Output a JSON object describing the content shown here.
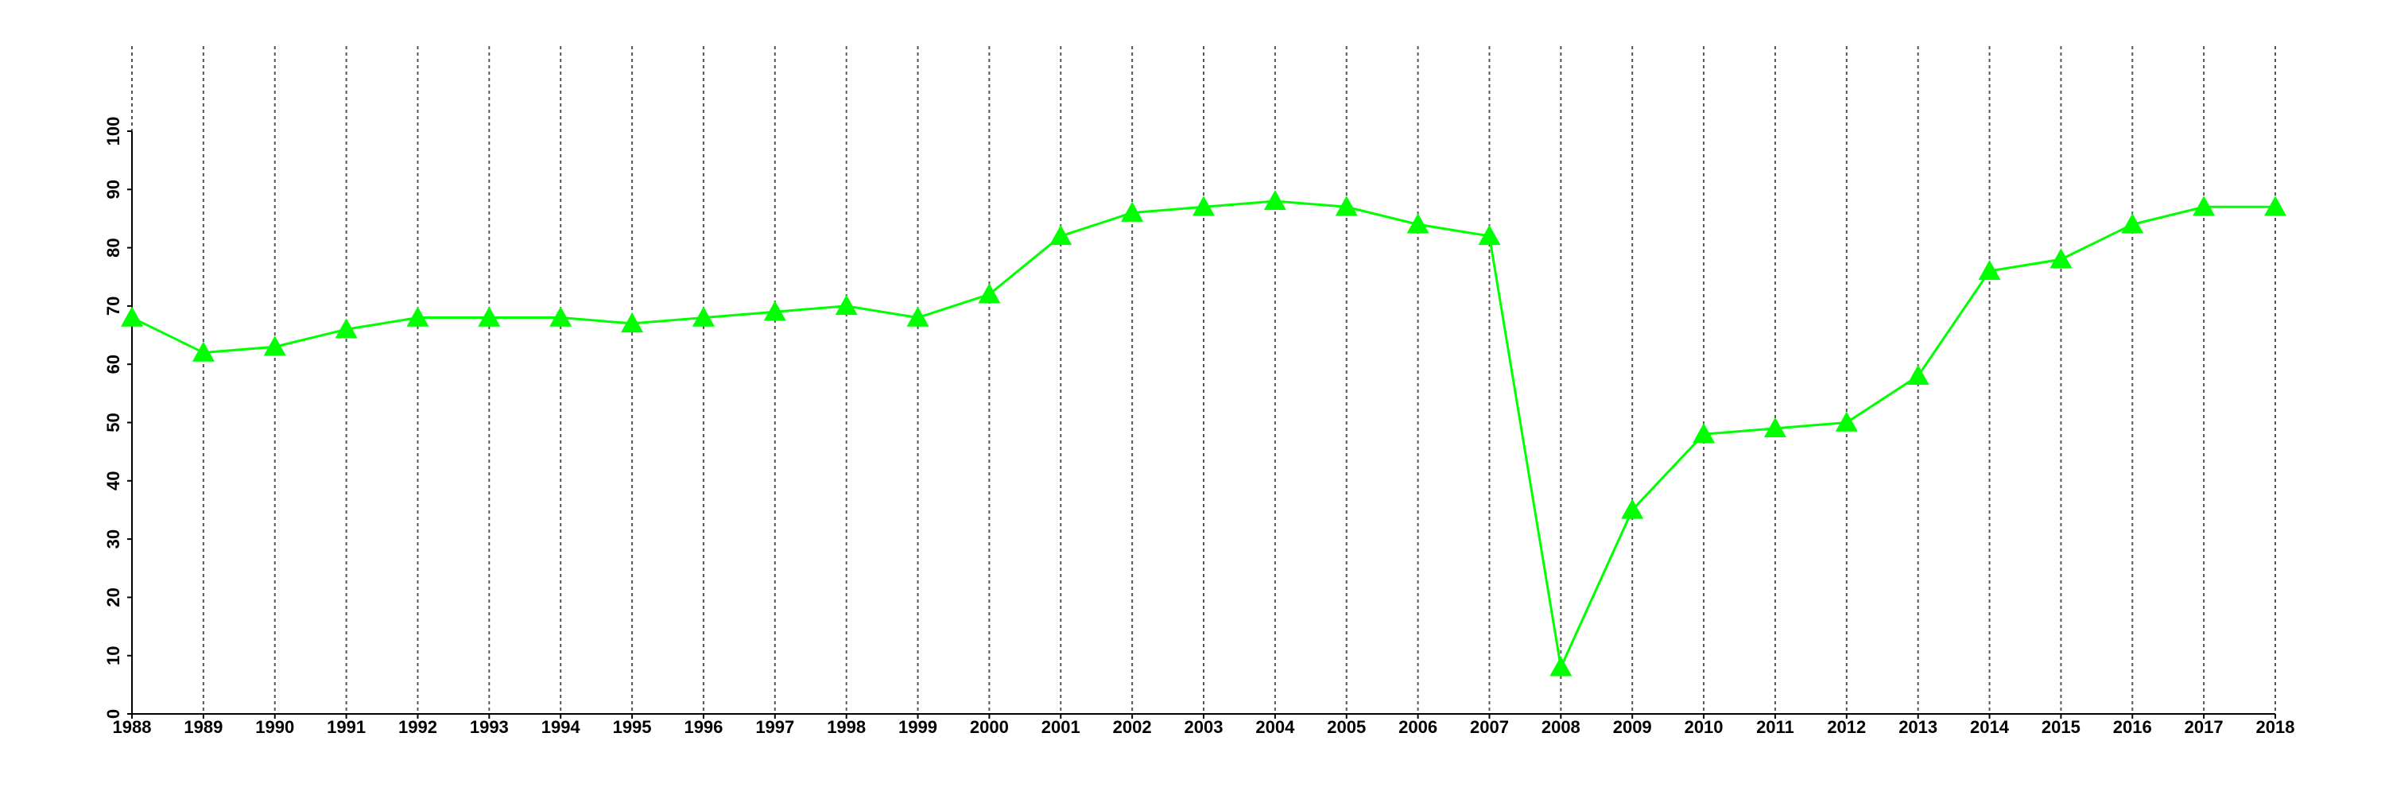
{
  "chart_data": {
    "type": "line",
    "x": [
      1988,
      1989,
      1990,
      1991,
      1992,
      1993,
      1994,
      1995,
      1996,
      1997,
      1998,
      1999,
      2000,
      2001,
      2002,
      2003,
      2004,
      2005,
      2006,
      2007,
      2008,
      2009,
      2010,
      2011,
      2012,
      2013,
      2014,
      2015,
      2016,
      2017,
      2018
    ],
    "values": [
      68,
      62,
      63,
      66,
      68,
      68,
      68,
      67,
      68,
      69,
      70,
      68,
      72,
      82,
      86,
      87,
      88,
      87,
      84,
      82,
      8,
      35,
      48,
      49,
      50,
      58,
      76,
      78,
      84,
      87,
      87
    ],
    "color": "#00ff00",
    "xlim": [
      1988,
      2018
    ],
    "xticks": [
      1988,
      1989,
      1990,
      1991,
      1992,
      1993,
      1994,
      1995,
      1996,
      1997,
      1998,
      1999,
      2000,
      2001,
      2002,
      2003,
      2004,
      2005,
      2006,
      2007,
      2008,
      2009,
      2010,
      2011,
      2012,
      2013,
      2014,
      2015,
      2016,
      2017,
      2018
    ],
    "ylim": [
      0,
      100
    ],
    "yticks": [
      0,
      10,
      20,
      30,
      40,
      50,
      60,
      70,
      80,
      90,
      100
    ],
    "grid": true
  }
}
